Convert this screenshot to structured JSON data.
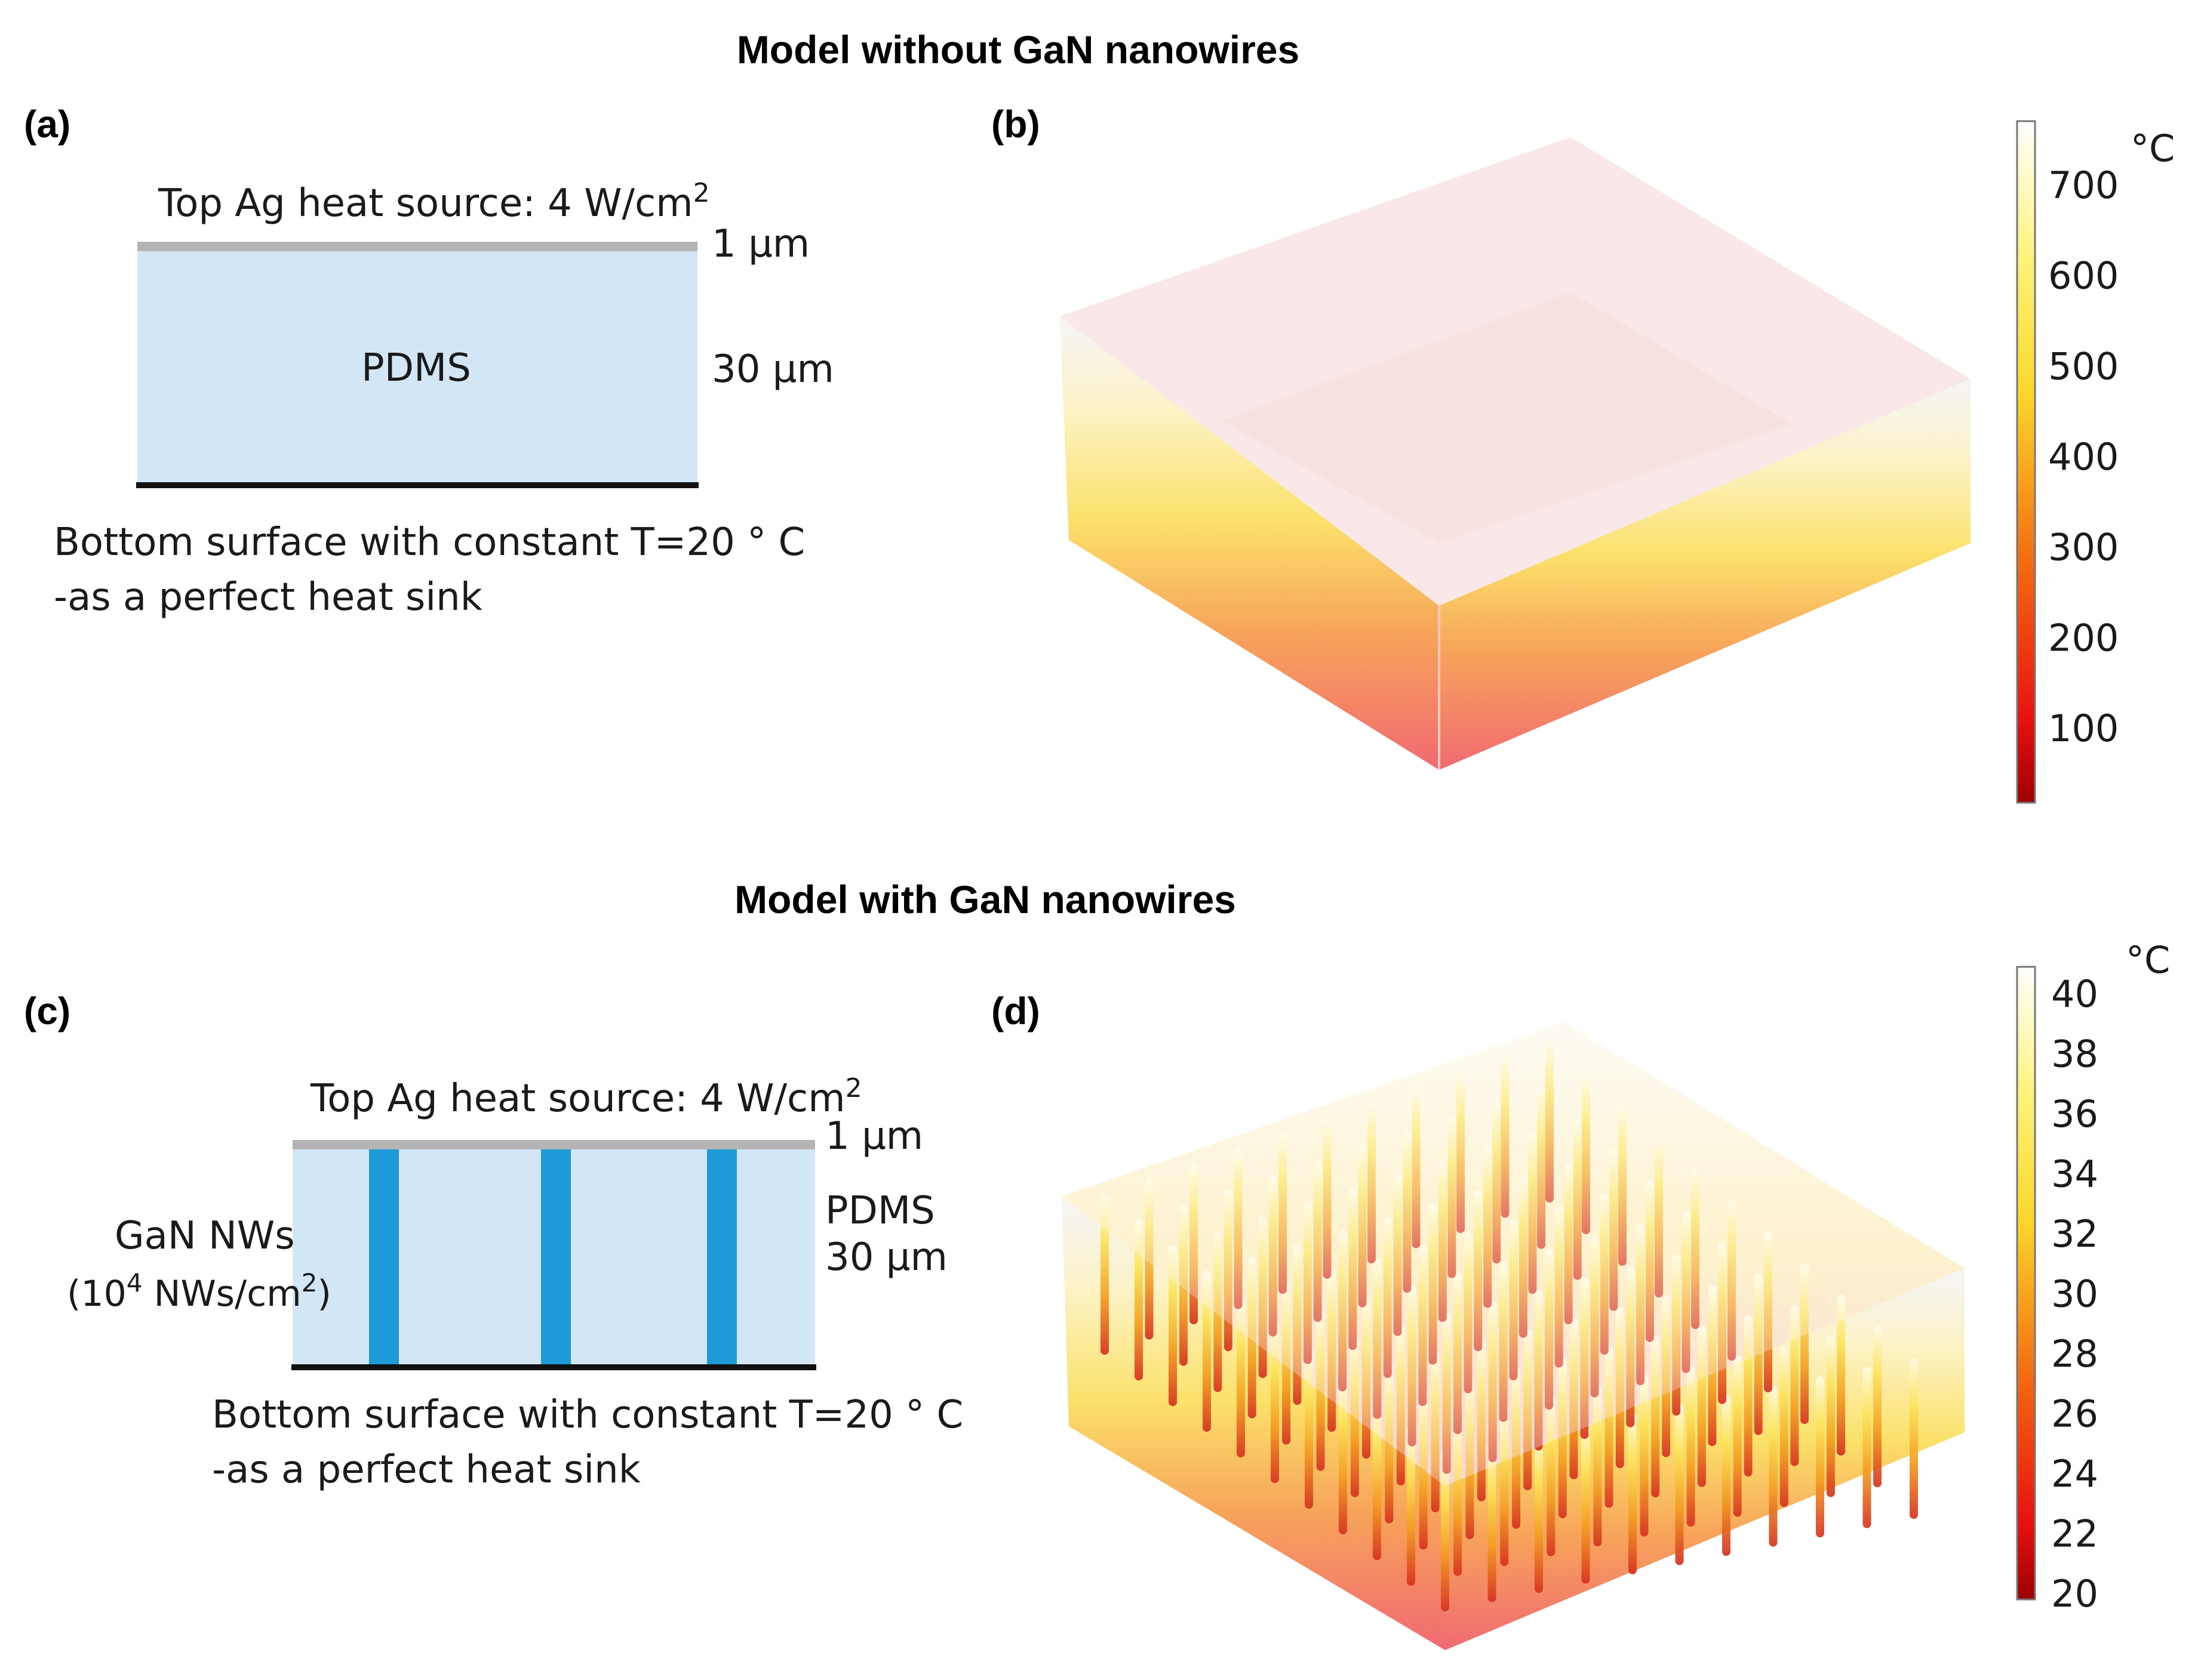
{
  "titles": {
    "top": "Model without GaN nanowires",
    "bottom": "Model with GaN nanowires"
  },
  "panels": {
    "a": "(a)",
    "b": "(b)",
    "c": "(c)",
    "d": "(d)"
  },
  "panel_a": {
    "heat_source": "Top Ag heat source: 4 W/cm",
    "heat_source_sup": "2",
    "ag_thickness": "1 µm",
    "material": "PDMS",
    "pdms_thickness": "30 µm",
    "bottom_line1": "Bottom surface with constant T=20 °  C",
    "bottom_line2": "-as a perfect heat sink"
  },
  "panel_c": {
    "heat_source": "Top Ag heat source: 4 W/cm",
    "heat_source_sup": "2",
    "ag_thickness": "1 µm",
    "material": "PDMS",
    "pdms_thickness": "30 µm",
    "nw_label": "GaN NWs",
    "nw_density_pre": "(10",
    "nw_density_sup": "4",
    "nw_density_mid": " NWs/cm",
    "nw_density_sup2": "2",
    "nw_density_post": ")",
    "bottom_line1": "Bottom surface with constant T=20 °  C",
    "bottom_line2": "-as a perfect heat sink"
  },
  "colorbars": {
    "b": {
      "unit": "°C",
      "ticks": [
        "700",
        "600",
        "500",
        "400",
        "300",
        "200",
        "100"
      ]
    },
    "d": {
      "unit": "°C",
      "ticks": [
        "40",
        "38",
        "36",
        "34",
        "32",
        "30",
        "28",
        "26",
        "24",
        "22",
        "20"
      ]
    }
  },
  "colors": {
    "pdms": "#d3e6f5",
    "nanowire": "#1e9ad8",
    "ag_layer": "#b4b4b4",
    "heat_sink": "#111111"
  }
}
